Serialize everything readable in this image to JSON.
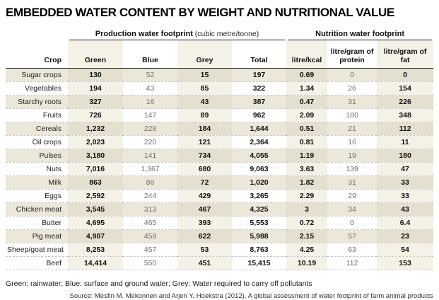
{
  "title": "EMBEDDED WATER CONTENT BY WEIGHT AND NUTRITIONAL VALUE",
  "chart_data": {
    "type": "table",
    "title": "Embedded water content by weight and nutritional value",
    "group_headers": [
      {
        "label": "Production water footprint",
        "unit": " (cubic metre/tonne)",
        "spans_columns": [
          "Green",
          "Blue",
          "Grey",
          "Total"
        ]
      },
      {
        "label": "Nutrition water footprint",
        "unit": "",
        "spans_columns": [
          "litre/kcal",
          "litre/gram of protein",
          "litre/gram of fat"
        ]
      }
    ],
    "columns": [
      "Crop",
      "Green",
      "Blue",
      "Grey",
      "Total",
      "litre/kcal",
      "litre/gram of protein",
      "litre/gram of fat"
    ],
    "rows": [
      [
        "Sugar crops",
        "130",
        "52",
        "15",
        "197",
        "0.69",
        "0",
        "0"
      ],
      [
        "Vegetables",
        "194",
        "43",
        "85",
        "322",
        "1.34",
        "26",
        "154"
      ],
      [
        "Starchy roots",
        "327",
        "16",
        "43",
        "387",
        "0.47",
        "31",
        "226"
      ],
      [
        "Fruits",
        "726",
        "147",
        "89",
        "962",
        "2.09",
        "180",
        "348"
      ],
      [
        "Cereals",
        "1,232",
        "228",
        "184",
        "1,644",
        "0.51",
        "21",
        "112"
      ],
      [
        "Oil crops",
        "2,023",
        "220",
        "121",
        "2,364",
        "0.81",
        "16",
        "11"
      ],
      [
        "Pulses",
        "3,180",
        "141",
        "734",
        "4,055",
        "1.19",
        "19",
        "180"
      ],
      [
        "Nuts",
        "7,016",
        "1,367",
        "680",
        "9,063",
        "3.63",
        "139",
        "47"
      ],
      [
        "Milk",
        "863",
        "86",
        "72",
        "1,020",
        "1.82",
        "31",
        "33"
      ],
      [
        "Eggs",
        "2,592",
        "244",
        "429",
        "3,265",
        "2.29",
        "29",
        "33"
      ],
      [
        "Chicken meat",
        "3,545",
        "313",
        "467",
        "4,325",
        "3",
        "34",
        "43"
      ],
      [
        "Butter",
        "4,695",
        "465",
        "393",
        "5,553",
        "0.72",
        "0",
        "6.4"
      ],
      [
        "Pig meat",
        "4,907",
        "459",
        "622",
        "5,988",
        "2.15",
        "57",
        "23"
      ],
      [
        "Sheep/goat meat",
        "8,253",
        "457",
        "53",
        "8,763",
        "4.25",
        "63",
        "54"
      ],
      [
        "Beef",
        "14,414",
        "550",
        "451",
        "15,415",
        "10.19",
        "112",
        "153"
      ]
    ],
    "striped_row_indices": [
      0,
      2,
      4,
      6,
      8,
      10,
      12
    ],
    "tinted_column_indices": [
      1,
      3,
      5,
      7
    ],
    "bold_column_indices": [
      1,
      3,
      4,
      5,
      7
    ],
    "gray_column_indices": [
      2,
      6
    ]
  },
  "footer": {
    "legend": "Green: rainwater; Blue: surface and ground water; Grey: Water required to carry off pollutants",
    "source": "Source: Mesfin M. Mekonnen and Arjen Y. Hoekstra (2012), A global assessment of water footprint of farm animal products"
  },
  "colors": {
    "row_stripe": "#ebe8da",
    "column_tint": "#f4f2e7",
    "stripe_plus_tint": "#e3e0cf",
    "rule": "#1a1a1a",
    "dashed_separator": "#c6c6c6",
    "bold_value_text": "#111111",
    "gray_value_text": "#6f6f6f"
  }
}
